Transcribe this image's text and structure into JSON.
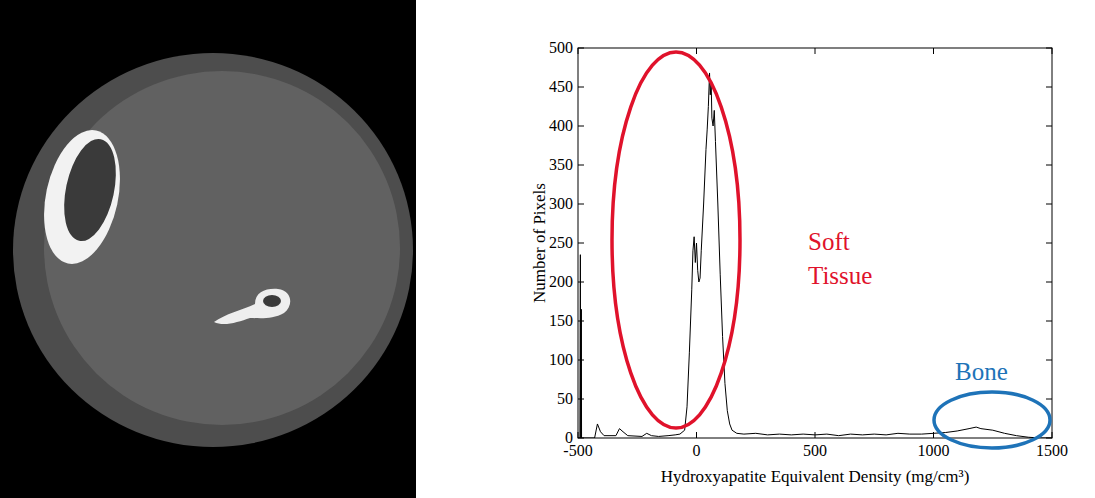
{
  "chart_data": {
    "type": "line",
    "xlabel": "Hydroxyapatite Equivalent Density (mg/cm³)",
    "ylabel": "Number of Pixels",
    "annotations": [
      "Soft Tissue",
      "Bone"
    ],
    "color": "#000000",
    "x": [
      -500,
      -492,
      -490,
      -489,
      -487,
      -486,
      -485,
      -480,
      -430,
      -418,
      -405,
      -390,
      -340,
      -325,
      -310,
      -290,
      -230,
      -210,
      -190,
      -160,
      -120,
      -90,
      -70,
      -50,
      -40,
      -30,
      -20,
      -15,
      -10,
      -5,
      0,
      5,
      10,
      15,
      20,
      30,
      40,
      45,
      50,
      55,
      58,
      62,
      65,
      70,
      75,
      80,
      90,
      100,
      110,
      120,
      130,
      140,
      150,
      170,
      200,
      250,
      300,
      350,
      400,
      450,
      500,
      550,
      600,
      650,
      700,
      750,
      800,
      850,
      900,
      950,
      1000,
      1050,
      1100,
      1150,
      1180,
      1200,
      1250,
      1300,
      1350,
      1400,
      1450,
      1500
    ],
    "values": [
      0,
      0,
      235,
      0,
      0,
      165,
      0,
      0,
      0,
      18,
      8,
      3,
      3,
      12,
      8,
      3,
      2,
      6,
      3,
      2,
      3,
      4,
      5,
      10,
      40,
      110,
      190,
      240,
      258,
      225,
      250,
      215,
      200,
      205,
      240,
      300,
      370,
      395,
      425,
      468,
      440,
      455,
      410,
      400,
      420,
      380,
      300,
      210,
      130,
      70,
      35,
      18,
      10,
      6,
      5,
      6,
      4,
      5,
      4,
      5,
      4,
      5,
      3,
      5,
      4,
      5,
      4,
      6,
      5,
      5,
      6,
      7,
      9,
      12,
      14,
      12,
      10,
      6,
      3,
      1,
      0,
      0
    ],
    "xlim": [
      -500,
      1500
    ],
    "xticks": [
      -500,
      0,
      500,
      1000,
      1500
    ],
    "ylim": [
      0,
      500
    ],
    "yticks": [
      0,
      50,
      100,
      150,
      200,
      250,
      300,
      350,
      400,
      450,
      500
    ],
    "grid": false
  }
}
